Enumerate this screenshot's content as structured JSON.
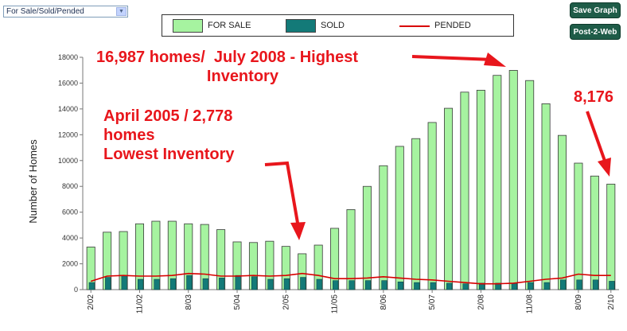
{
  "toolbar": {
    "dropdown_value": "For Sale/Sold/Pended",
    "save_label": "Save Graph",
    "post_label": "Post-2-Web"
  },
  "legend": [
    {
      "name": "FOR SALE",
      "color": "#a6f3a0",
      "type": "bar"
    },
    {
      "name": "SOLD",
      "color": "#137a78",
      "type": "bar"
    },
    {
      "name": "PENDED",
      "color": "#d80000",
      "type": "line"
    }
  ],
  "annotations": {
    "highest": "16,987 homes/  July 2008 - Highest\n                         Inventory",
    "lowest": "April 2005 / 2,778\nhomes\nLowest Inventory",
    "latest": "8,176"
  },
  "chart_data": {
    "type": "bar",
    "ylabel": "Number of Homes",
    "xlabel": "",
    "ylim": [
      0,
      18000
    ],
    "yticks": [
      0,
      2000,
      4000,
      6000,
      8000,
      10000,
      12000,
      14000,
      16000,
      18000
    ],
    "xtick_labels": [
      "2/02",
      "11/02",
      "8/03",
      "5/04",
      "2/05",
      "11/05",
      "8/06",
      "5/07",
      "2/08",
      "11/08",
      "8/09",
      "2/10"
    ],
    "xtick_index": [
      0,
      3,
      6,
      9,
      12,
      15,
      18,
      21,
      24,
      27,
      30,
      32
    ],
    "grid": false,
    "series": [
      {
        "name": "FOR SALE",
        "values": [
          3300,
          4450,
          4500,
          5100,
          5300,
          5300,
          5100,
          5050,
          4650,
          3700,
          3650,
          3750,
          3350,
          2778,
          3450,
          4750,
          6200,
          8000,
          9600,
          11100,
          11700,
          12950,
          14050,
          15300,
          15450,
          16600,
          16987,
          16200,
          14400,
          11950,
          9800,
          8800,
          8176
        ]
      },
      {
        "name": "SOLD",
        "values": [
          550,
          950,
          1100,
          800,
          800,
          850,
          1100,
          850,
          900,
          1100,
          1000,
          800,
          850,
          950,
          800,
          700,
          700,
          700,
          700,
          600,
          550,
          550,
          500,
          450,
          500,
          500,
          500,
          550,
          550,
          750,
          750,
          750,
          650
        ]
      },
      {
        "name": "PENDED",
        "values": [
          650,
          1050,
          1100,
          1050,
          1050,
          1100,
          1250,
          1200,
          1050,
          1050,
          1100,
          1050,
          1100,
          1250,
          1100,
          850,
          850,
          900,
          1000,
          900,
          800,
          750,
          650,
          550,
          450,
          450,
          500,
          650,
          800,
          900,
          1200,
          1100,
          1100
        ]
      }
    ]
  }
}
